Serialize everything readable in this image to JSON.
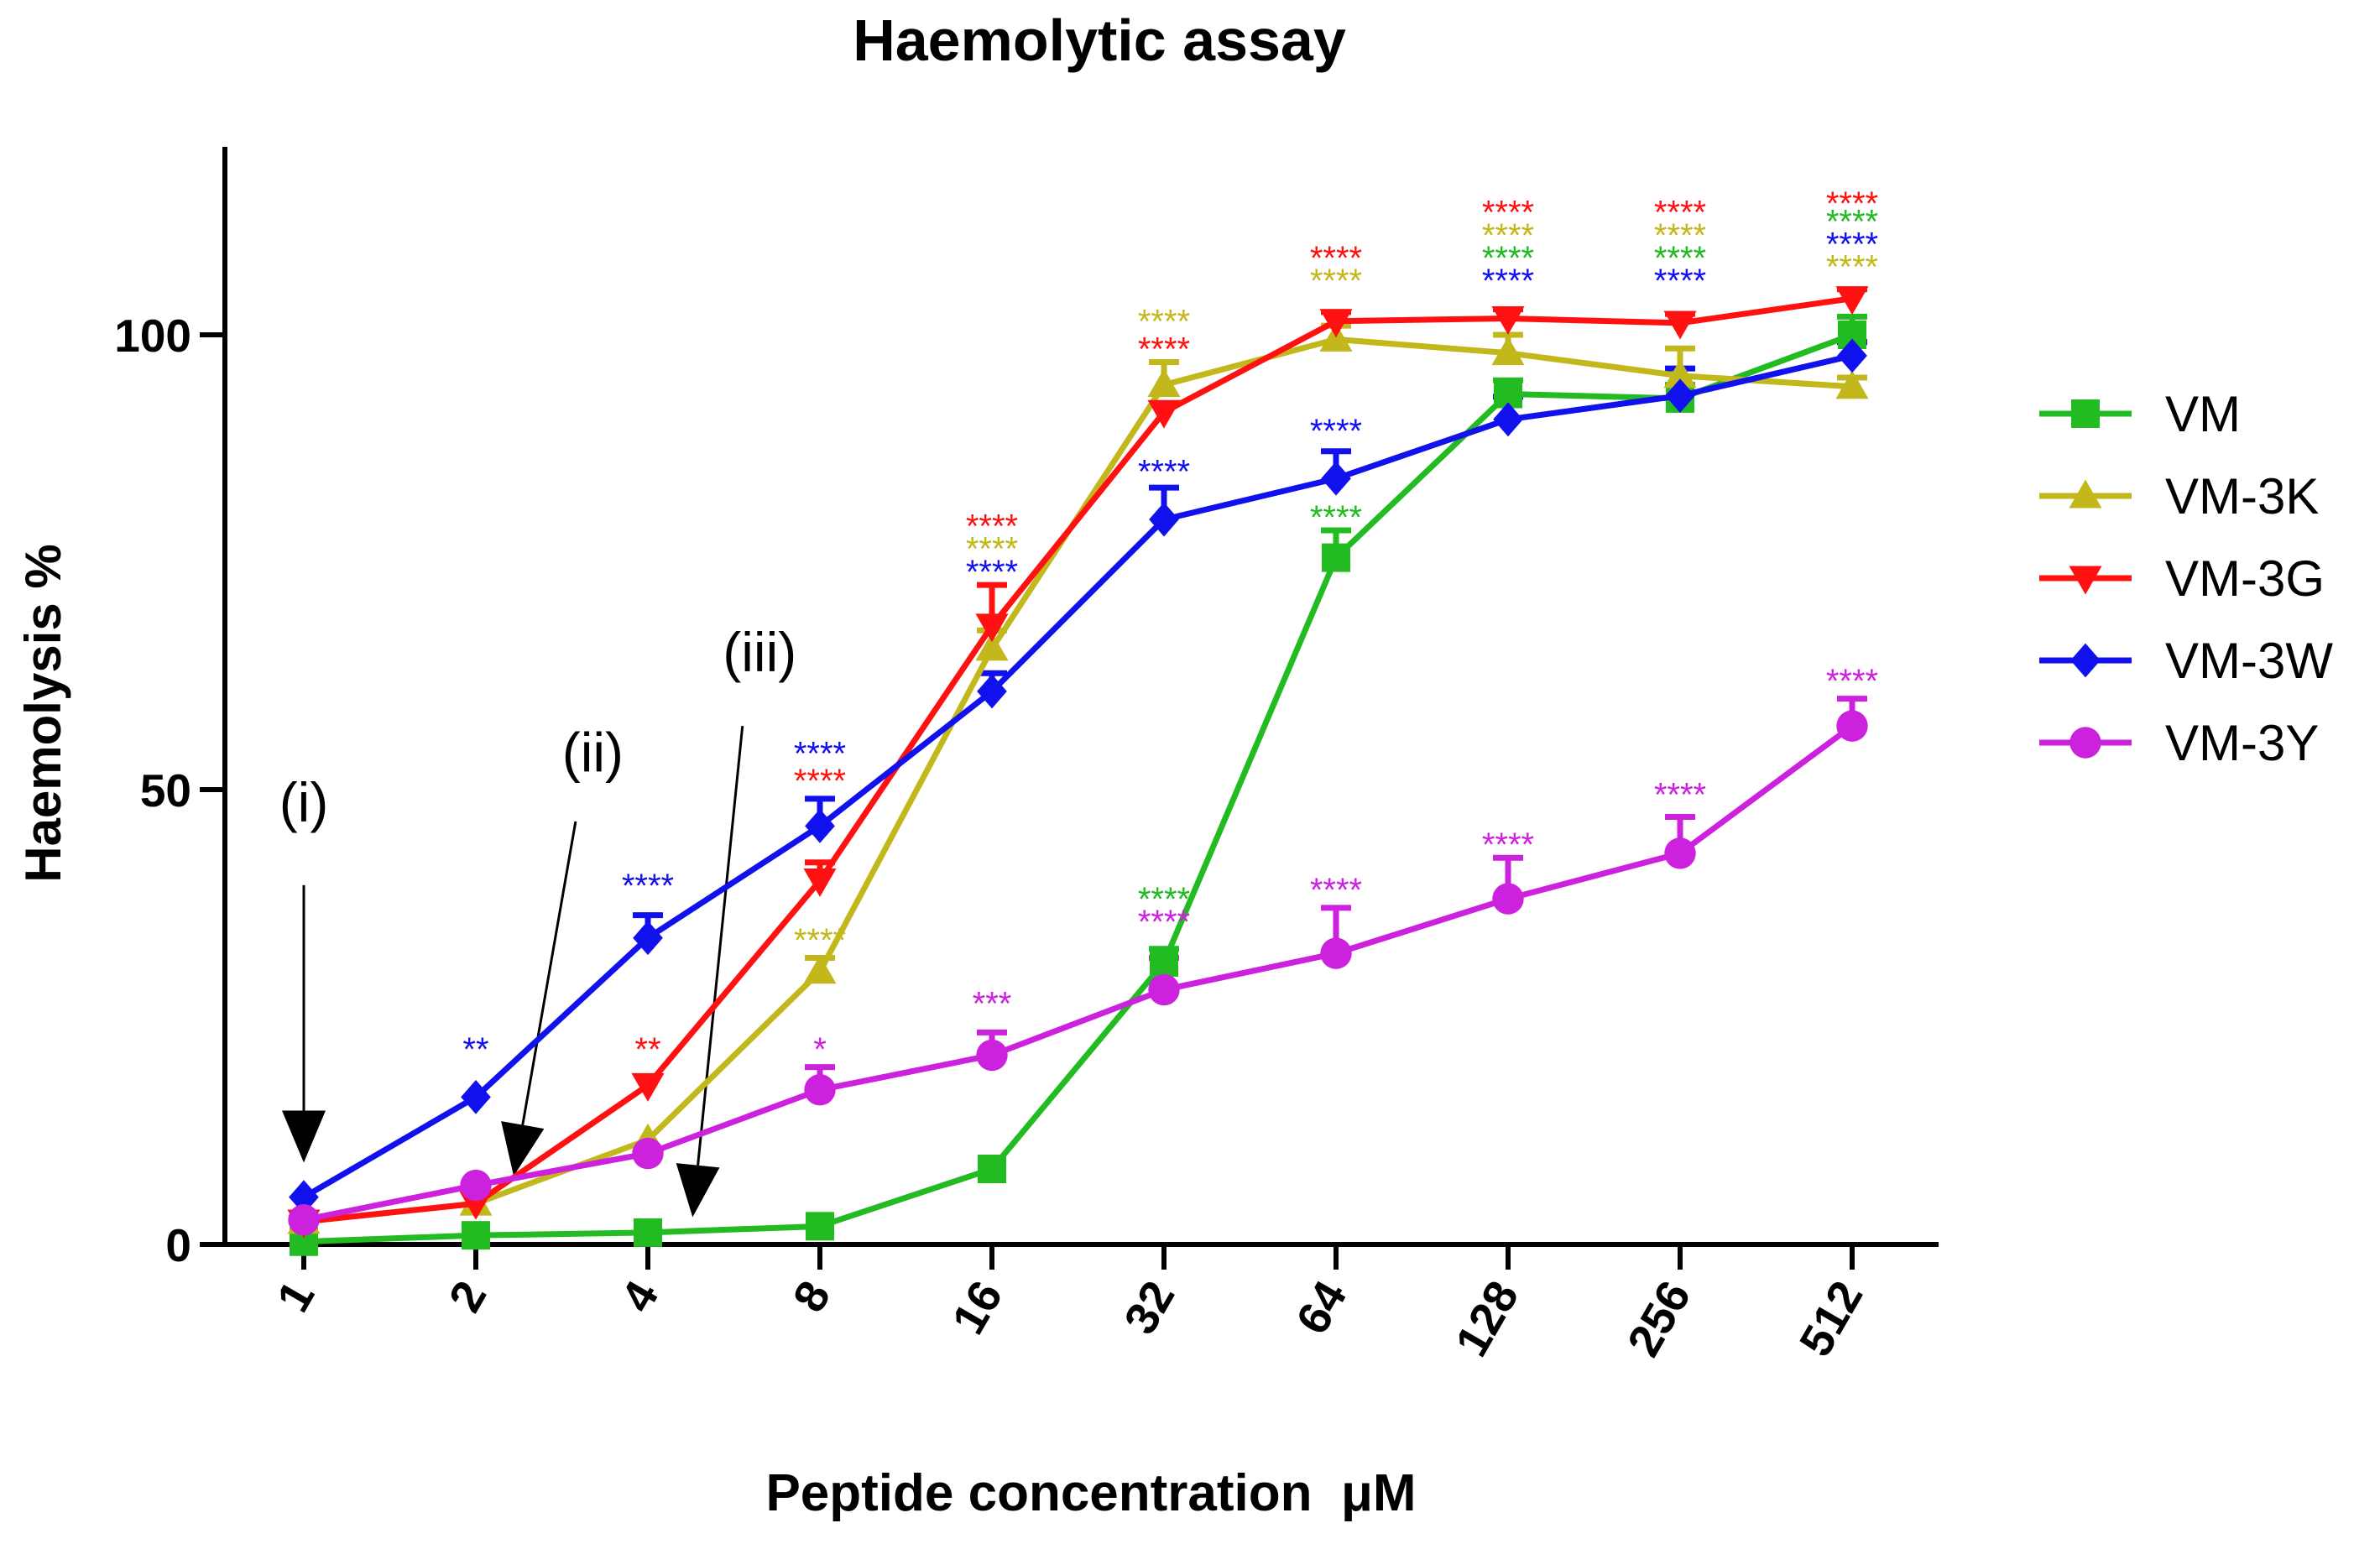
{
  "chart_data": {
    "type": "line",
    "title": "Haemolytic assay",
    "xlabel": "Peptide concentration  μM",
    "ylabel": "Haemolysis %",
    "categories": [
      "1",
      "2",
      "4",
      "8",
      "16",
      "32",
      "64",
      "128",
      "256",
      "512"
    ],
    "ylim": [
      0,
      120
    ],
    "yticks": [
      0,
      50,
      100
    ],
    "ytick_labels": [
      "0",
      "50",
      "100"
    ],
    "legend_position": "right",
    "series": [
      {
        "name": "VM",
        "color": "#22bb22",
        "marker": "square",
        "values": [
          0.3,
          1.0,
          1.3,
          2.0,
          8.3,
          31.0,
          75.5,
          93.5,
          93.0,
          100.0
        ],
        "errors": [
          0,
          0,
          0,
          0,
          0,
          1.5,
          3.0,
          1.5,
          1.5,
          2.0
        ]
      },
      {
        "name": "VM-3K",
        "color": "#c2b81c",
        "marker": "triangle-up",
        "values": [
          2.5,
          4.5,
          11.5,
          30.0,
          65.5,
          94.5,
          99.5,
          98.0,
          95.5,
          94.3
        ],
        "errors": [
          0,
          0,
          0,
          1.5,
          2.0,
          2.5,
          1.5,
          2.0,
          3.0,
          1.0
        ]
      },
      {
        "name": "VM-3G",
        "color": "#ff1111",
        "marker": "triangle-down",
        "values": [
          2.5,
          4.5,
          17.5,
          40.0,
          68.0,
          91.5,
          101.5,
          101.8,
          101.3,
          104.0
        ],
        "errors": [
          0,
          0,
          0,
          2.0,
          4.5,
          0,
          1.0,
          1.0,
          1.0,
          1.0
        ]
      },
      {
        "name": "VM-3W",
        "color": "#1111ee",
        "marker": "diamond",
        "values": [
          5.2,
          16.2,
          33.7,
          46.0,
          60.8,
          79.7,
          84.2,
          90.7,
          93.3,
          97.7
        ],
        "errors": [
          0,
          0,
          2.5,
          3.0,
          2.0,
          3.5,
          3.0,
          2.5,
          3.0,
          1.5
        ]
      },
      {
        "name": "VM-3Y",
        "color": "#cc22dd",
        "marker": "circle",
        "values": [
          2.7,
          6.5,
          10.0,
          17.0,
          20.8,
          28.0,
          32.0,
          38.0,
          43.0,
          57.0
        ],
        "errors": [
          0,
          0,
          0,
          2.5,
          2.5,
          3.5,
          5.0,
          4.5,
          4.0,
          3.0
        ]
      }
    ],
    "significance": [
      {
        "x_index": 1,
        "y": 21.5,
        "text": "**",
        "series": "VM-3W"
      },
      {
        "x_index": 2,
        "y": 39.5,
        "text": "****",
        "series": "VM-3W"
      },
      {
        "x_index": 2,
        "y": 21.5,
        "text": "**",
        "series": "VM-3G"
      },
      {
        "x_index": 3,
        "y": 54.0,
        "text": "****",
        "series": "VM-3W"
      },
      {
        "x_index": 3,
        "y": 51.0,
        "text": "****",
        "series": "VM-3G"
      },
      {
        "x_index": 3,
        "y": 33.5,
        "text": "****",
        "series": "VM-3K"
      },
      {
        "x_index": 3,
        "y": 21.5,
        "text": "*",
        "series": "VM-3Y"
      },
      {
        "x_index": 4,
        "y": 79.0,
        "text": "****",
        "series": "VM-3G"
      },
      {
        "x_index": 4,
        "y": 76.5,
        "text": "****",
        "series": "VM-3K"
      },
      {
        "x_index": 4,
        "y": 74.0,
        "text": "****",
        "series": "VM-3W"
      },
      {
        "x_index": 4,
        "y": 26.5,
        "text": "***",
        "series": "VM-3Y"
      },
      {
        "x_index": 5,
        "y": 101.5,
        "text": "****",
        "series": "VM-3K"
      },
      {
        "x_index": 5,
        "y": 98.5,
        "text": "****",
        "series": "VM-3G"
      },
      {
        "x_index": 5,
        "y": 85.0,
        "text": "****",
        "series": "VM-3W"
      },
      {
        "x_index": 5,
        "y": 38.0,
        "text": "****",
        "series": "VM"
      },
      {
        "x_index": 5,
        "y": 35.5,
        "text": "****",
        "series": "VM-3Y"
      },
      {
        "x_index": 6,
        "y": 108.5,
        "text": "****",
        "series": "VM-3G"
      },
      {
        "x_index": 6,
        "y": 106.0,
        "text": "****",
        "series": "VM-3K"
      },
      {
        "x_index": 6,
        "y": 89.5,
        "text": "****",
        "series": "VM-3W"
      },
      {
        "x_index": 6,
        "y": 80.0,
        "text": "****",
        "series": "VM"
      },
      {
        "x_index": 6,
        "y": 39.0,
        "text": "****",
        "series": "VM-3Y"
      },
      {
        "x_index": 7,
        "y": 113.5,
        "text": "****",
        "series": "VM-3G"
      },
      {
        "x_index": 7,
        "y": 111.0,
        "text": "****",
        "series": "VM-3K"
      },
      {
        "x_index": 7,
        "y": 108.5,
        "text": "****",
        "series": "VM"
      },
      {
        "x_index": 7,
        "y": 106.0,
        "text": "****",
        "series": "VM-3W"
      },
      {
        "x_index": 7,
        "y": 44.0,
        "text": "****",
        "series": "VM-3Y"
      },
      {
        "x_index": 8,
        "y": 113.5,
        "text": "****",
        "series": "VM-3G"
      },
      {
        "x_index": 8,
        "y": 111.0,
        "text": "****",
        "series": "VM-3K"
      },
      {
        "x_index": 8,
        "y": 108.5,
        "text": "****",
        "series": "VM"
      },
      {
        "x_index": 8,
        "y": 106.0,
        "text": "****",
        "series": "VM-3W"
      },
      {
        "x_index": 8,
        "y": 49.5,
        "text": "****",
        "series": "VM-3Y"
      },
      {
        "x_index": 9,
        "y": 114.5,
        "text": "****",
        "series": "VM-3G"
      },
      {
        "x_index": 9,
        "y": 112.5,
        "text": "****",
        "series": "VM"
      },
      {
        "x_index": 9,
        "y": 110.0,
        "text": "****",
        "series": "VM-3W"
      },
      {
        "x_index": 9,
        "y": 107.5,
        "text": "****",
        "series": "VM-3K"
      },
      {
        "x_index": 9,
        "y": 62.0,
        "text": "****",
        "series": "VM-3Y"
      }
    ],
    "annotations": [
      {
        "label": "(i)",
        "label_x_index": 0.0,
        "label_y": 46.5,
        "tip_x_index": 0.0,
        "tip_y": 9.0,
        "tail_y": 39.5
      },
      {
        "label": "(ii)",
        "label_x_index": 1.68,
        "label_y": 52.0,
        "tip_x_index": 1.22,
        "tip_y": 7.5,
        "tail_x_index": 1.58,
        "tail_y": 46.5
      },
      {
        "label": "(iii)",
        "label_x_index": 2.65,
        "label_y": 63.0,
        "tip_x_index": 2.26,
        "tip_y": 3.0,
        "tail_x_index": 2.55,
        "tail_y": 57.0
      }
    ]
  }
}
